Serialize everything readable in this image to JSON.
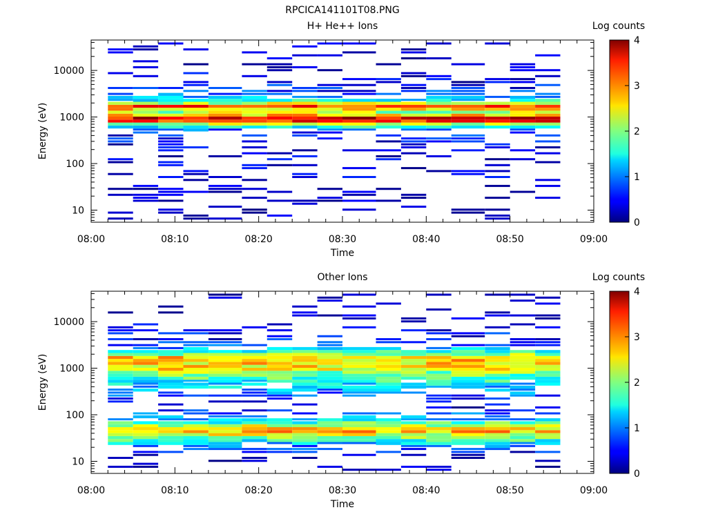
{
  "figure_title": "RPCICA141101T08.PNG",
  "chart_data": [
    {
      "type": "heatmap",
      "title": "H+ He++ Ions",
      "xlabel": "Time",
      "ylabel": "Energy (eV)",
      "x_ticks": [
        "08:00",
        "08:10",
        "08:20",
        "08:30",
        "08:40",
        "08:50",
        "09:00"
      ],
      "xlim": [
        "08:00",
        "09:00"
      ],
      "y_scale": "log",
      "y_ticks": [
        10,
        100,
        1000,
        10000
      ],
      "y_tick_labels": [
        "10",
        "100",
        "1000",
        "10000"
      ],
      "ylim": [
        5.5,
        45000
      ],
      "colorbar": {
        "label": "Log counts",
        "range": [
          0,
          4
        ],
        "ticks": [
          "0",
          "1",
          "2",
          "3",
          "4"
        ]
      },
      "time_bins": [
        [
          "08:02",
          "08:05"
        ],
        [
          "08:05",
          "08:08"
        ],
        [
          "08:08",
          "08:11"
        ],
        [
          "08:11",
          "08:14"
        ],
        [
          "08:14",
          "08:18"
        ],
        [
          "08:18",
          "08:21"
        ],
        [
          "08:21",
          "08:24"
        ],
        [
          "08:24",
          "08:27"
        ],
        [
          "08:27",
          "08:30"
        ],
        [
          "08:30",
          "08:34"
        ],
        [
          "08:34",
          "08:37"
        ],
        [
          "08:37",
          "08:40"
        ],
        [
          "08:40",
          "08:43"
        ],
        [
          "08:43",
          "08:47"
        ],
        [
          "08:47",
          "08:50"
        ],
        [
          "08:50",
          "08:53"
        ],
        [
          "08:53",
          "08:56"
        ]
      ],
      "mean_log_counts_vs_energy": [
        {
          "energy_eV": 10,
          "log_counts": 0.05
        },
        {
          "energy_eV": 30,
          "log_counts": 0.1
        },
        {
          "energy_eV": 50,
          "log_counts": 0.2
        },
        {
          "energy_eV": 200,
          "log_counts": 0.25
        },
        {
          "energy_eV": 500,
          "log_counts": 0.6
        },
        {
          "energy_eV": 700,
          "log_counts": 2.2
        },
        {
          "energy_eV": 850,
          "log_counts": 3.7
        },
        {
          "energy_eV": 1000,
          "log_counts": 3.5
        },
        {
          "energy_eV": 1200,
          "log_counts": 2.0
        },
        {
          "energy_eV": 1700,
          "log_counts": 3.2
        },
        {
          "energy_eV": 2200,
          "log_counts": 1.6
        },
        {
          "energy_eV": 3000,
          "log_counts": 0.8
        },
        {
          "energy_eV": 6000,
          "log_counts": 0.3
        },
        {
          "energy_eV": 20000,
          "log_counts": 0.1
        }
      ]
    },
    {
      "type": "heatmap",
      "title": "Other Ions",
      "xlabel": "Time",
      "ylabel": "Energy (eV)",
      "x_ticks": [
        "08:00",
        "08:10",
        "08:20",
        "08:30",
        "08:40",
        "08:50",
        "09:00"
      ],
      "xlim": [
        "08:00",
        "09:00"
      ],
      "y_scale": "log",
      "y_ticks": [
        10,
        100,
        1000,
        10000
      ],
      "y_tick_labels": [
        "10",
        "100",
        "1000",
        "10000"
      ],
      "ylim": [
        5.5,
        45000
      ],
      "colorbar": {
        "label": "Log counts",
        "range": [
          0,
          4
        ],
        "ticks": [
          "0",
          "1",
          "2",
          "3",
          "4"
        ]
      },
      "time_bins": [
        [
          "08:02",
          "08:05"
        ],
        [
          "08:05",
          "08:08"
        ],
        [
          "08:08",
          "08:11"
        ],
        [
          "08:11",
          "08:14"
        ],
        [
          "08:14",
          "08:18"
        ],
        [
          "08:18",
          "08:21"
        ],
        [
          "08:21",
          "08:24"
        ],
        [
          "08:24",
          "08:27"
        ],
        [
          "08:27",
          "08:30"
        ],
        [
          "08:30",
          "08:34"
        ],
        [
          "08:34",
          "08:37"
        ],
        [
          "08:37",
          "08:40"
        ],
        [
          "08:40",
          "08:43"
        ],
        [
          "08:43",
          "08:47"
        ],
        [
          "08:47",
          "08:50"
        ],
        [
          "08:50",
          "08:53"
        ],
        [
          "08:53",
          "08:56"
        ]
      ],
      "mean_log_counts_vs_energy": [
        {
          "energy_eV": 10,
          "log_counts": 0.05
        },
        {
          "energy_eV": 20,
          "log_counts": 0.8
        },
        {
          "energy_eV": 30,
          "log_counts": 1.8
        },
        {
          "energy_eV": 45,
          "log_counts": 2.8
        },
        {
          "energy_eV": 60,
          "log_counts": 2.2
        },
        {
          "energy_eV": 80,
          "log_counts": 1.2
        },
        {
          "energy_eV": 150,
          "log_counts": 0.15
        },
        {
          "energy_eV": 800,
          "log_counts": 2.0
        },
        {
          "energy_eV": 950,
          "log_counts": 2.5
        },
        {
          "energy_eV": 1700,
          "log_counts": 2.7
        },
        {
          "energy_eV": 2200,
          "log_counts": 1.7
        },
        {
          "energy_eV": 3000,
          "log_counts": 0.7
        },
        {
          "energy_eV": 15000,
          "log_counts": 0.05
        }
      ]
    }
  ]
}
